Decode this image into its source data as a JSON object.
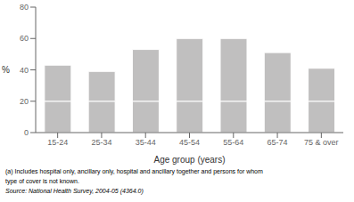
{
  "chart_data": {
    "type": "bar",
    "categories": [
      "15-24",
      "25-34",
      "35-44",
      "45-54",
      "55-64",
      "65-74",
      "75 & over"
    ],
    "series": [
      {
        "color": "#c0bfbf",
        "values": [
          20,
          20,
          20,
          20,
          20,
          20,
          20
        ]
      },
      {
        "color": "#c0bfbf",
        "values": [
          23,
          19,
          33,
          40,
          40,
          31,
          21
        ]
      }
    ],
    "stacked": true,
    "xlabel": "Age group (years)",
    "ylabel": "%",
    "ylim": [
      0,
      80
    ],
    "yticks": [
      0,
      20,
      40,
      60,
      80
    ],
    "grid": false,
    "annotations": [
      "(a) Includes hospital only, ancillary only, hospital and ancillary together and persons for whom",
      "type of cover is not known.",
      "Source: National Health Survey,  2004-05 (4364.0)"
    ]
  }
}
